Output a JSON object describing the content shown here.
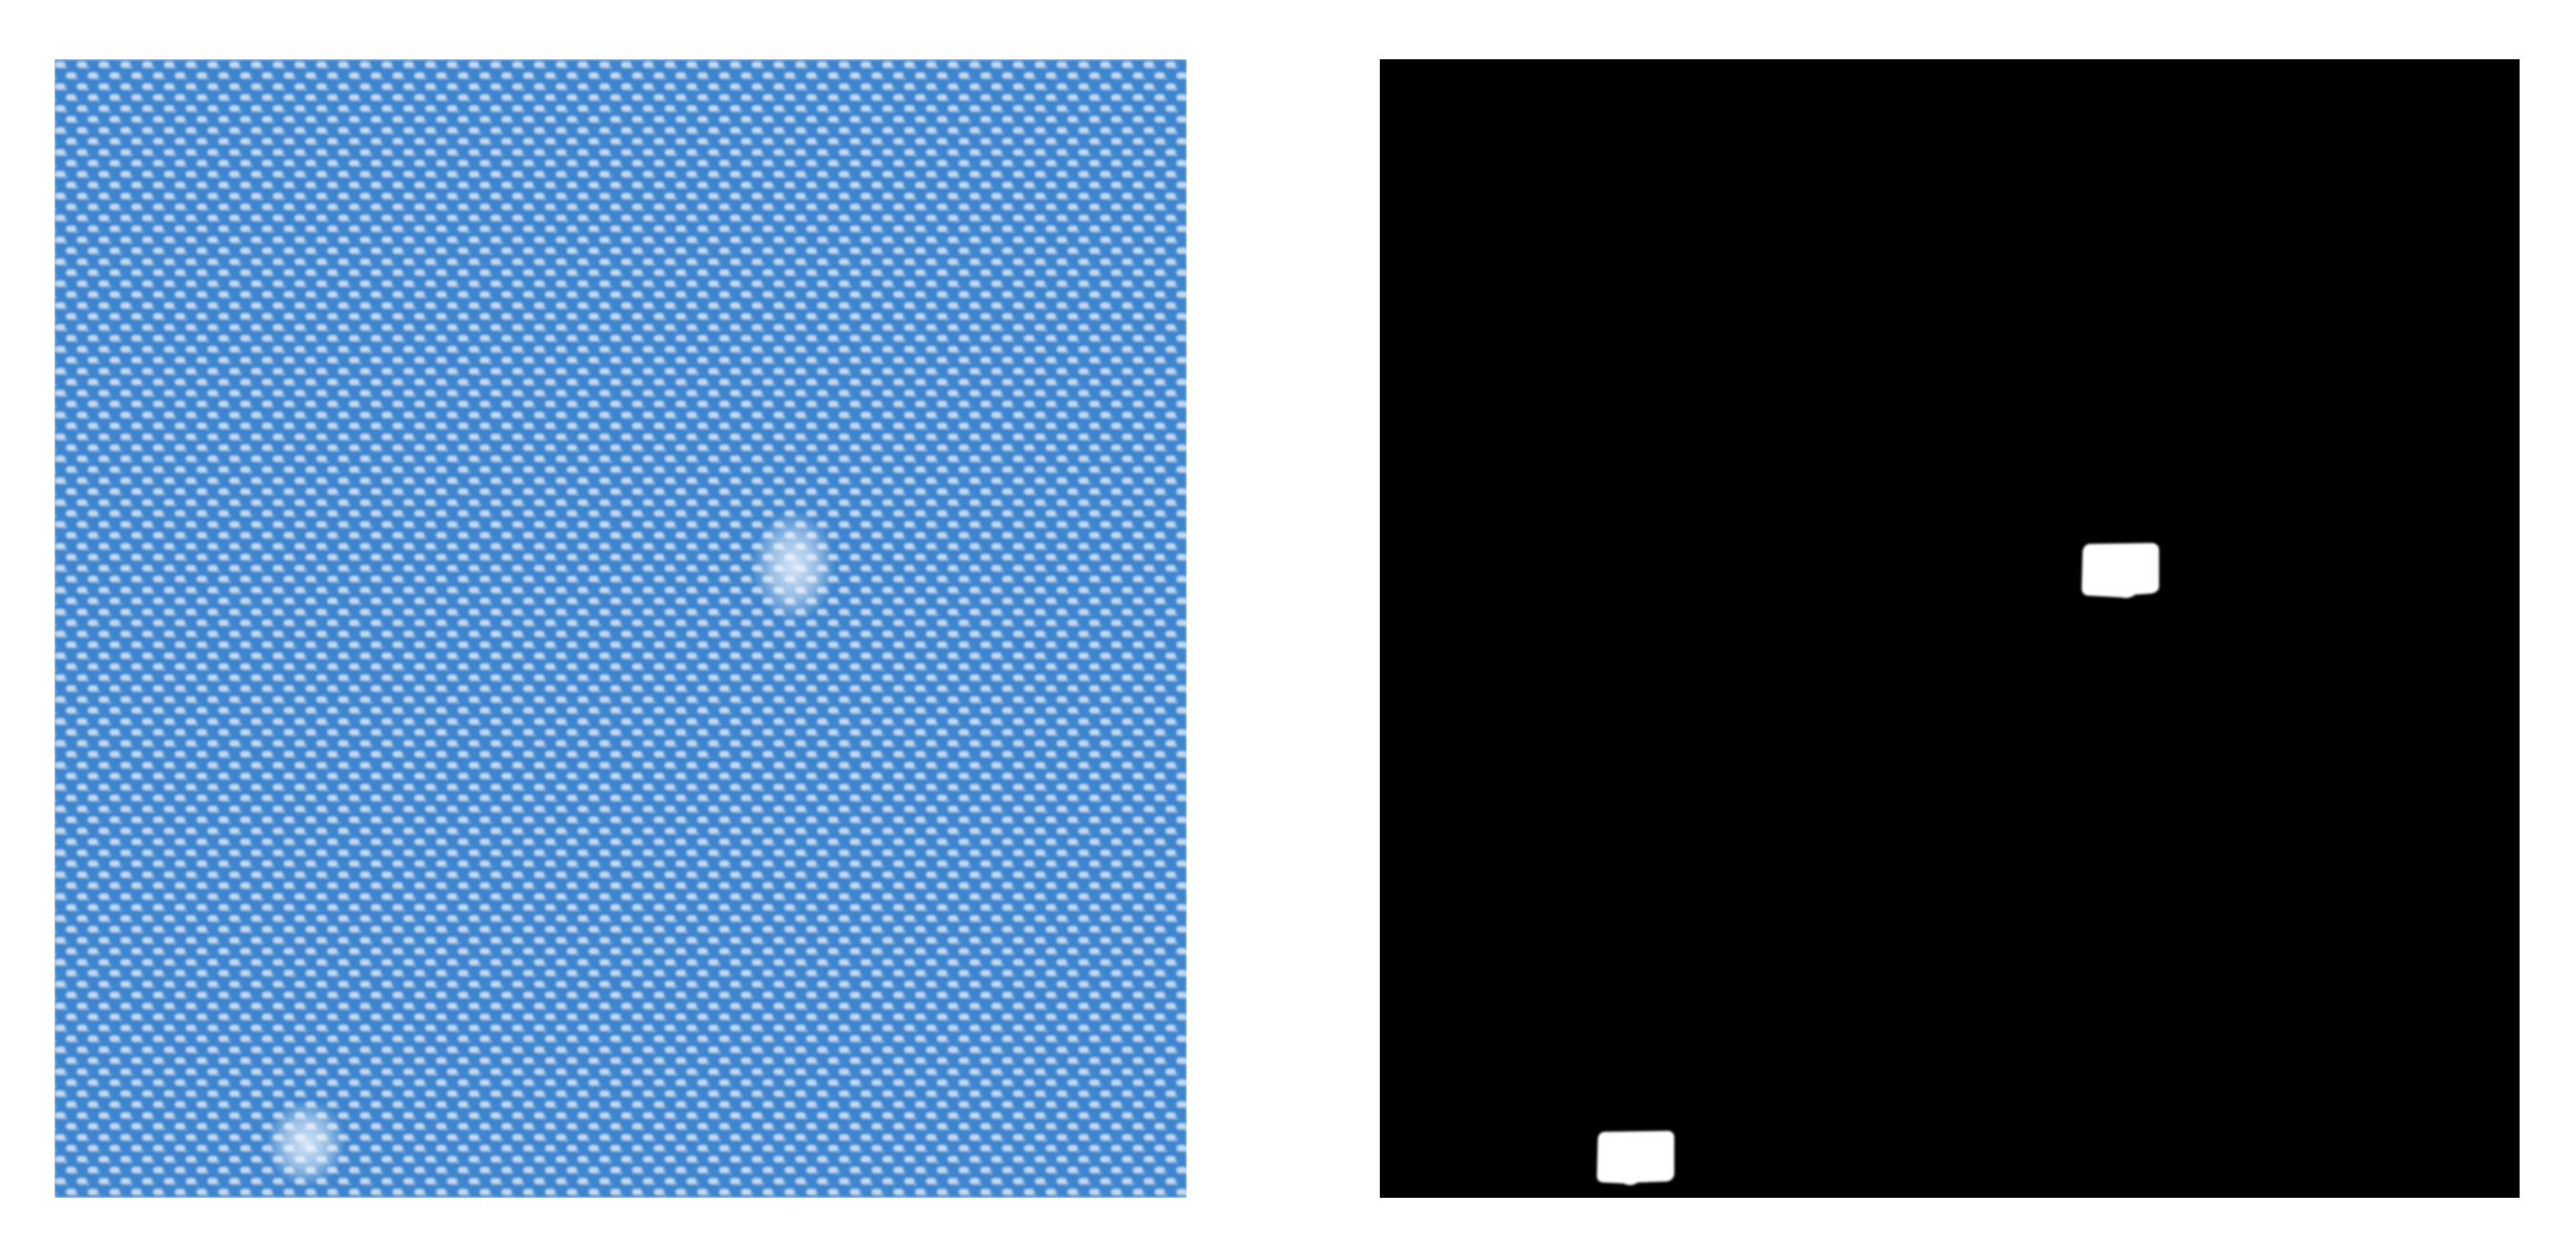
{
  "colors": {
    "fabric_blue": "#3d86cf",
    "fabric_light": "#c3daf1",
    "defect_highlight": "#eef5fc",
    "mask_background": "#000000",
    "mask_defect": "#ffffff"
  }
}
